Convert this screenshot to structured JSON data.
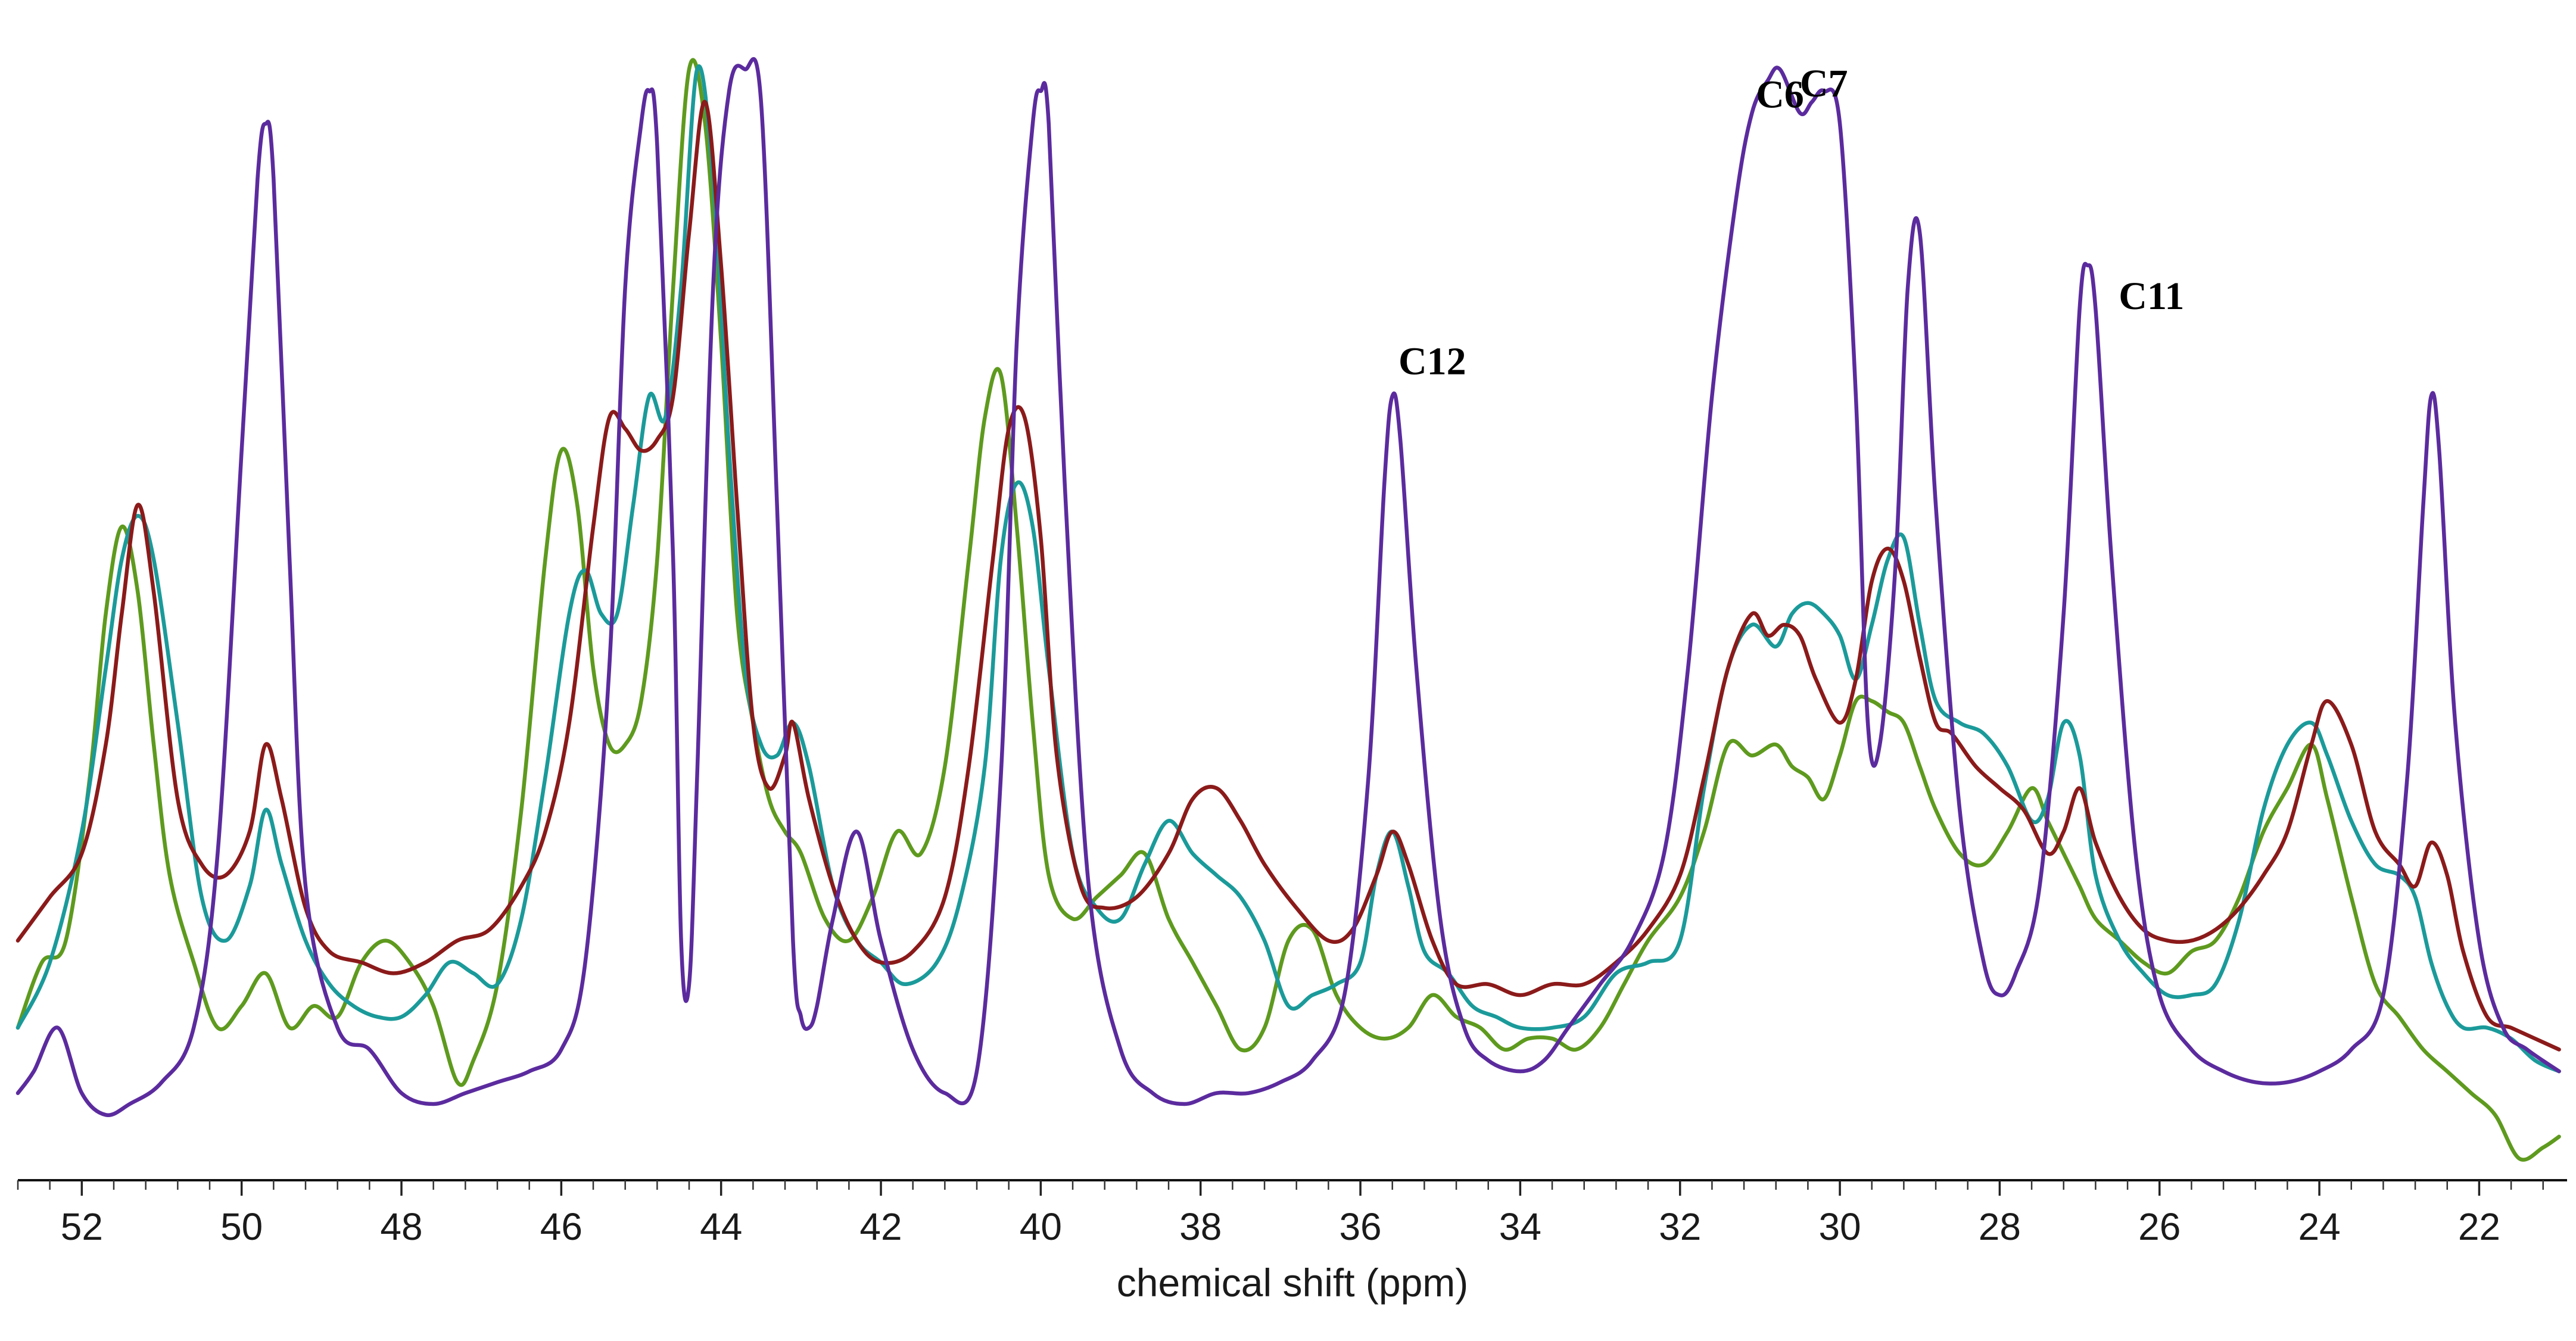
{
  "chart_data": {
    "type": "line",
    "title": "",
    "xlabel": "chemical shift (ppm)",
    "ylabel": "",
    "xlim": [
      52.8,
      20.9
    ],
    "ylim": [
      -0.02,
      1.05
    ],
    "x_reversed": true,
    "grid": false,
    "legend": "none",
    "xticks": [
      52,
      50,
      48,
      46,
      44,
      42,
      40,
      38,
      36,
      34,
      32,
      30,
      28,
      26,
      24,
      22
    ],
    "xtick_labels": [
      "52",
      "50",
      "48",
      "46",
      "44",
      "42",
      "40",
      "38",
      "36",
      "34",
      "32",
      "30",
      "28",
      "26",
      "24",
      "22"
    ],
    "annotations": [
      {
        "text": "C6",
        "x": 30.75,
        "y": 0.965
      },
      {
        "text": "C7",
        "x": 30.2,
        "y": 0.975
      },
      {
        "text": "C12",
        "x": 35.1,
        "y": 0.72
      },
      {
        "text": "C11",
        "x": 26.1,
        "y": 0.78
      }
    ],
    "series": [
      {
        "name": "purple",
        "color": "#5b2b9e",
        "x": [
          52.8,
          52.6,
          52.3,
          52.0,
          51.7,
          51.4,
          51.0,
          50.6,
          50.3,
          50.0,
          49.8,
          49.7,
          49.6,
          49.4,
          49.2,
          48.8,
          48.4,
          48.0,
          47.6,
          47.2,
          46.8,
          46.4,
          46.0,
          45.7,
          45.4,
          45.2,
          45.0,
          44.9,
          44.8,
          44.6,
          44.5,
          44.4,
          44.3,
          44.1,
          43.9,
          43.7,
          43.5,
          43.3,
          43.1,
          43.0,
          42.9,
          42.8,
          42.6,
          42.3,
          42.0,
          41.6,
          41.2,
          40.8,
          40.5,
          40.3,
          40.1,
          40.0,
          39.9,
          39.7,
          39.4,
          39.0,
          38.6,
          38.2,
          37.8,
          37.4,
          37.0,
          36.6,
          36.2,
          35.9,
          35.7,
          35.6,
          35.5,
          35.3,
          35.0,
          34.7,
          34.4,
          34.0,
          33.7,
          33.4,
          33.0,
          32.6,
          32.2,
          31.9,
          31.6,
          31.3,
          31.1,
          30.9,
          30.75,
          30.5,
          30.35,
          30.2,
          30.0,
          29.8,
          29.65,
          29.5,
          29.3,
          29.15,
          29.0,
          28.8,
          28.5,
          28.2,
          28.0,
          27.8,
          27.5,
          27.2,
          27.0,
          26.9,
          26.8,
          26.6,
          26.3,
          26.0,
          25.6,
          25.2,
          24.8,
          24.4,
          24.0,
          23.6,
          23.2,
          22.9,
          22.7,
          22.6,
          22.5,
          22.3,
          22.0,
          21.7,
          21.4,
          21.0
        ],
        "y": [
          0.06,
          0.08,
          0.12,
          0.06,
          0.04,
          0.05,
          0.07,
          0.12,
          0.28,
          0.65,
          0.9,
          0.95,
          0.9,
          0.55,
          0.25,
          0.12,
          0.1,
          0.06,
          0.05,
          0.06,
          0.07,
          0.08,
          0.1,
          0.18,
          0.45,
          0.8,
          0.95,
          0.98,
          0.93,
          0.55,
          0.2,
          0.16,
          0.35,
          0.8,
          0.98,
          1.0,
          0.97,
          0.6,
          0.2,
          0.13,
          0.12,
          0.14,
          0.22,
          0.3,
          0.2,
          0.1,
          0.06,
          0.08,
          0.35,
          0.75,
          0.95,
          0.98,
          0.95,
          0.62,
          0.25,
          0.1,
          0.06,
          0.05,
          0.06,
          0.06,
          0.07,
          0.09,
          0.15,
          0.35,
          0.62,
          0.7,
          0.66,
          0.45,
          0.22,
          0.12,
          0.09,
          0.08,
          0.09,
          0.12,
          0.16,
          0.2,
          0.28,
          0.45,
          0.7,
          0.88,
          0.96,
          0.99,
          1.0,
          0.96,
          0.97,
          0.98,
          0.95,
          0.7,
          0.4,
          0.38,
          0.55,
          0.8,
          0.85,
          0.6,
          0.32,
          0.18,
          0.15,
          0.17,
          0.25,
          0.5,
          0.78,
          0.82,
          0.78,
          0.55,
          0.28,
          0.15,
          0.1,
          0.08,
          0.07,
          0.07,
          0.08,
          0.1,
          0.15,
          0.35,
          0.6,
          0.7,
          0.65,
          0.4,
          0.2,
          0.12,
          0.1,
          0.08
        ]
      },
      {
        "name": "dark red",
        "color": "#8b1a1a",
        "x": [
          52.8,
          52.4,
          52.0,
          51.7,
          51.5,
          51.3,
          51.1,
          50.8,
          50.5,
          50.2,
          49.9,
          49.7,
          49.5,
          49.2,
          48.9,
          48.5,
          48.1,
          47.7,
          47.3,
          46.9,
          46.5,
          46.2,
          45.9,
          45.6,
          45.4,
          45.2,
          45.0,
          44.8,
          44.6,
          44.4,
          44.2,
          44.0,
          43.8,
          43.6,
          43.4,
          43.2,
          43.1,
          42.9,
          42.6,
          42.3,
          42.0,
          41.6,
          41.2,
          40.9,
          40.6,
          40.4,
          40.2,
          40.0,
          39.8,
          39.5,
          39.2,
          38.8,
          38.4,
          38.1,
          37.8,
          37.5,
          37.2,
          36.8,
          36.4,
          36.1,
          35.8,
          35.6,
          35.4,
          35.1,
          34.8,
          34.4,
          34.0,
          33.6,
          33.2,
          32.8,
          32.4,
          32.0,
          31.7,
          31.4,
          31.1,
          30.9,
          30.7,
          30.5,
          30.3,
          30.0,
          29.8,
          29.6,
          29.4,
          29.2,
          29.0,
          28.8,
          28.6,
          28.3,
          28.0,
          27.7,
          27.4,
          27.2,
          27.0,
          26.8,
          26.5,
          26.2,
          25.9,
          25.6,
          25.3,
          25.0,
          24.7,
          24.4,
          24.1,
          23.9,
          23.6,
          23.3,
          23.0,
          22.8,
          22.6,
          22.4,
          22.2,
          21.9,
          21.6,
          21.3,
          21.0
        ],
        "y": [
          0.2,
          0.24,
          0.28,
          0.38,
          0.5,
          0.6,
          0.52,
          0.33,
          0.27,
          0.26,
          0.3,
          0.38,
          0.33,
          0.23,
          0.19,
          0.18,
          0.17,
          0.18,
          0.2,
          0.21,
          0.25,
          0.3,
          0.4,
          0.58,
          0.68,
          0.67,
          0.65,
          0.66,
          0.7,
          0.85,
          0.97,
          0.82,
          0.6,
          0.4,
          0.34,
          0.37,
          0.4,
          0.33,
          0.25,
          0.2,
          0.18,
          0.19,
          0.24,
          0.36,
          0.55,
          0.67,
          0.68,
          0.57,
          0.37,
          0.25,
          0.23,
          0.24,
          0.28,
          0.33,
          0.34,
          0.31,
          0.27,
          0.23,
          0.2,
          0.21,
          0.26,
          0.3,
          0.27,
          0.2,
          0.16,
          0.16,
          0.15,
          0.16,
          0.16,
          0.18,
          0.21,
          0.26,
          0.35,
          0.45,
          0.5,
          0.48,
          0.49,
          0.48,
          0.44,
          0.4,
          0.44,
          0.53,
          0.56,
          0.53,
          0.46,
          0.4,
          0.39,
          0.36,
          0.34,
          0.32,
          0.28,
          0.3,
          0.34,
          0.29,
          0.24,
          0.21,
          0.2,
          0.2,
          0.21,
          0.23,
          0.26,
          0.3,
          0.38,
          0.42,
          0.38,
          0.3,
          0.27,
          0.25,
          0.29,
          0.26,
          0.19,
          0.13,
          0.12,
          0.11,
          0.1
        ]
      },
      {
        "name": "teal",
        "color": "#1b9a9a",
        "x": [
          52.8,
          52.4,
          52.0,
          51.7,
          51.5,
          51.3,
          51.1,
          50.8,
          50.5,
          50.2,
          49.9,
          49.7,
          49.5,
          49.2,
          48.9,
          48.6,
          48.3,
          48.0,
          47.7,
          47.4,
          47.1,
          46.8,
          46.5,
          46.2,
          45.9,
          45.7,
          45.5,
          45.3,
          45.1,
          44.9,
          44.7,
          44.5,
          44.3,
          44.1,
          43.9,
          43.7,
          43.5,
          43.3,
          43.1,
          42.9,
          42.6,
          42.3,
          42.0,
          41.7,
          41.3,
          41.0,
          40.7,
          40.5,
          40.3,
          40.1,
          39.9,
          39.6,
          39.3,
          39.0,
          38.7,
          38.4,
          38.1,
          37.8,
          37.5,
          37.2,
          36.9,
          36.6,
          36.3,
          36.0,
          35.8,
          35.6,
          35.4,
          35.2,
          34.9,
          34.6,
          34.3,
          34.0,
          33.6,
          33.2,
          32.8,
          32.4,
          32.0,
          31.7,
          31.4,
          31.1,
          30.8,
          30.6,
          30.4,
          30.2,
          30.0,
          29.8,
          29.6,
          29.4,
          29.2,
          29.0,
          28.8,
          28.5,
          28.2,
          27.9,
          27.6,
          27.4,
          27.2,
          27.0,
          26.8,
          26.5,
          26.2,
          25.9,
          25.6,
          25.3,
          25.0,
          24.7,
          24.4,
          24.1,
          23.9,
          23.6,
          23.3,
          23.0,
          22.8,
          22.6,
          22.4,
          22.2,
          21.9,
          21.6,
          21.3,
          21.0
        ],
        "y": [
          0.12,
          0.18,
          0.3,
          0.45,
          0.55,
          0.59,
          0.55,
          0.4,
          0.24,
          0.2,
          0.25,
          0.32,
          0.27,
          0.2,
          0.16,
          0.14,
          0.13,
          0.13,
          0.15,
          0.18,
          0.17,
          0.16,
          0.22,
          0.35,
          0.5,
          0.54,
          0.5,
          0.5,
          0.6,
          0.7,
          0.68,
          0.8,
          1.0,
          0.9,
          0.65,
          0.45,
          0.38,
          0.37,
          0.4,
          0.36,
          0.25,
          0.2,
          0.18,
          0.16,
          0.18,
          0.24,
          0.36,
          0.55,
          0.62,
          0.58,
          0.45,
          0.28,
          0.23,
          0.22,
          0.27,
          0.31,
          0.28,
          0.26,
          0.24,
          0.2,
          0.14,
          0.15,
          0.16,
          0.18,
          0.26,
          0.3,
          0.25,
          0.19,
          0.17,
          0.14,
          0.13,
          0.12,
          0.12,
          0.13,
          0.17,
          0.18,
          0.2,
          0.34,
          0.45,
          0.49,
          0.47,
          0.5,
          0.51,
          0.5,
          0.48,
          0.44,
          0.49,
          0.55,
          0.57,
          0.49,
          0.42,
          0.4,
          0.39,
          0.36,
          0.31,
          0.33,
          0.4,
          0.37,
          0.26,
          0.2,
          0.17,
          0.15,
          0.15,
          0.16,
          0.22,
          0.32,
          0.38,
          0.4,
          0.37,
          0.31,
          0.27,
          0.26,
          0.24,
          0.18,
          0.14,
          0.12,
          0.12,
          0.11,
          0.09,
          0.08
        ]
      },
      {
        "name": "green",
        "color": "#5e9a1e",
        "x": [
          52.8,
          52.5,
          52.2,
          51.9,
          51.7,
          51.5,
          51.3,
          51.1,
          50.9,
          50.6,
          50.3,
          50.0,
          49.7,
          49.4,
          49.1,
          48.8,
          48.5,
          48.2,
          47.9,
          47.6,
          47.3,
          47.1,
          46.8,
          46.5,
          46.2,
          46.0,
          45.8,
          45.6,
          45.4,
          45.2,
          45.0,
          44.8,
          44.6,
          44.4,
          44.2,
          44.0,
          43.8,
          43.6,
          43.4,
          43.2,
          43.0,
          42.7,
          42.4,
          42.1,
          41.8,
          41.5,
          41.2,
          40.9,
          40.7,
          40.5,
          40.3,
          40.1,
          39.9,
          39.6,
          39.3,
          39.0,
          38.7,
          38.4,
          38.1,
          37.8,
          37.5,
          37.2,
          36.9,
          36.6,
          36.3,
          36.0,
          35.7,
          35.4,
          35.1,
          34.8,
          34.5,
          34.2,
          33.9,
          33.6,
          33.3,
          33.0,
          32.7,
          32.4,
          32.0,
          31.7,
          31.4,
          31.1,
          30.8,
          30.6,
          30.4,
          30.2,
          30.0,
          29.8,
          29.6,
          29.4,
          29.2,
          29.0,
          28.8,
          28.5,
          28.2,
          27.9,
          27.6,
          27.4,
          27.2,
          27.0,
          26.8,
          26.5,
          26.2,
          25.9,
          25.6,
          25.3,
          25.0,
          24.7,
          24.4,
          24.1,
          23.9,
          23.6,
          23.3,
          23.0,
          22.7,
          22.4,
          22.1,
          21.8,
          21.5,
          21.2,
          21.0
        ],
        "y": [
          0.12,
          0.18,
          0.2,
          0.35,
          0.5,
          0.58,
          0.52,
          0.38,
          0.26,
          0.18,
          0.12,
          0.14,
          0.17,
          0.12,
          0.14,
          0.13,
          0.18,
          0.2,
          0.18,
          0.14,
          0.07,
          0.09,
          0.16,
          0.32,
          0.55,
          0.65,
          0.6,
          0.45,
          0.38,
          0.38,
          0.42,
          0.55,
          0.8,
          1.0,
          0.95,
          0.75,
          0.5,
          0.4,
          0.33,
          0.3,
          0.28,
          0.22,
          0.2,
          0.24,
          0.3,
          0.28,
          0.36,
          0.55,
          0.68,
          0.72,
          0.58,
          0.4,
          0.26,
          0.22,
          0.24,
          0.26,
          0.28,
          0.22,
          0.18,
          0.14,
          0.1,
          0.12,
          0.2,
          0.21,
          0.15,
          0.12,
          0.11,
          0.12,
          0.15,
          0.13,
          0.12,
          0.1,
          0.11,
          0.11,
          0.1,
          0.12,
          0.16,
          0.2,
          0.24,
          0.3,
          0.38,
          0.37,
          0.38,
          0.36,
          0.35,
          0.33,
          0.37,
          0.42,
          0.42,
          0.41,
          0.4,
          0.36,
          0.32,
          0.28,
          0.27,
          0.3,
          0.34,
          0.31,
          0.28,
          0.25,
          0.22,
          0.2,
          0.18,
          0.17,
          0.19,
          0.2,
          0.24,
          0.3,
          0.34,
          0.38,
          0.33,
          0.24,
          0.16,
          0.13,
          0.1,
          0.08,
          0.06,
          0.04,
          0.0,
          0.01,
          0.02
        ]
      }
    ]
  }
}
